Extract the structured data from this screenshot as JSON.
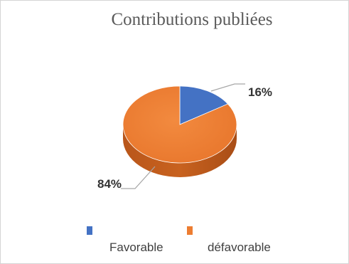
{
  "chart_data": {
    "type": "pie",
    "title": "Contributions publiées",
    "categories": [
      "Favorable",
      "défavorable"
    ],
    "values": [
      16,
      84
    ],
    "labels": [
      "16%",
      "84%"
    ],
    "colors": [
      "#4472c4",
      "#ed7d31"
    ],
    "legend_position": "bottom",
    "style": "3d"
  }
}
